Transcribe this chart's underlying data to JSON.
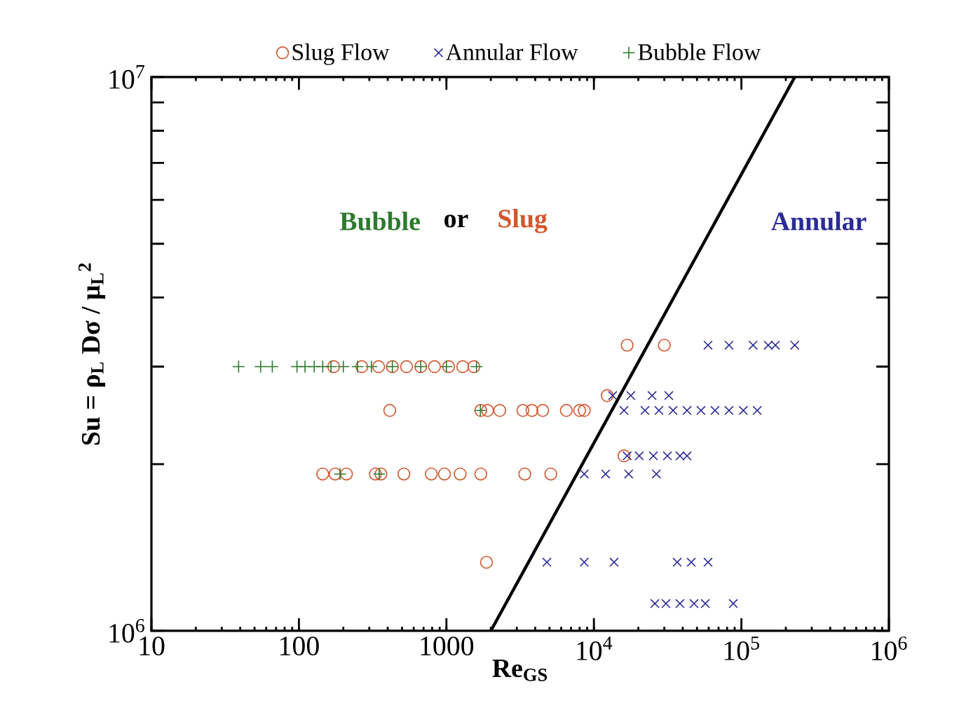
{
  "chart_data": {
    "type": "scatter",
    "xlabel": "Re$_{GS}$",
    "ylabel": "Su = ρ$_{L}$ Dσ / μ$_{L}$$^{2}$",
    "log": "xy",
    "legend": "top",
    "grid": false,
    "xlim": [
      10,
      1000000
    ],
    "ylim": [
      1000000,
      10000000
    ],
    "xticks": [
      10,
      100,
      1000,
      {
        "value": 10000,
        "label": "10$^{4}$"
      },
      {
        "value": 100000,
        "label": "10$^{5}$"
      },
      {
        "value": 1000000,
        "label": "10$^{6}$"
      }
    ],
    "yticks": [
      {
        "value": 1000000,
        "label": "10$^{6}$"
      },
      {
        "value": 2000000,
        "label": null
      },
      {
        "value": 3000000,
        "label": null
      },
      {
        "value": 4000000,
        "label": null
      },
      {
        "value": 5000000,
        "label": null
      },
      {
        "value": 6000000,
        "label": null
      },
      {
        "value": 7000000,
        "label": null
      },
      {
        "value": 8000000,
        "label": null
      },
      {
        "value": 9000000,
        "label": null
      },
      {
        "value": 10000000,
        "label": "10$^{7}$"
      }
    ],
    "annotations": [
      "Bubble",
      "or",
      "Slug",
      "Annular"
    ],
    "series": [
      {
        "name": "Slug Flow",
        "color": "#d2562e",
        "marker": "circle",
        "x": [
          172,
          267,
          347,
          430,
          537,
          670,
          830,
          1035,
          1290,
          1535,
          413,
          1710,
          1900,
          2300,
          3300,
          3800,
          4500,
          6500,
          8000,
          8600,
          12300,
          145,
          176,
          210,
          330,
          360,
          515,
          790,
          970,
          1240,
          1710,
          3400,
          5100,
          16000,
          1870,
          16800,
          30000
        ],
        "values": [
          3000000,
          3000000,
          3000000,
          3000000,
          3000000,
          3000000,
          3000000,
          3000000,
          3000000,
          3000000,
          2500000,
          2500000,
          2500000,
          2500000,
          2500000,
          2500000,
          2500000,
          2500000,
          2500000,
          2500000,
          2660000,
          1920000,
          1920000,
          1920000,
          1920000,
          1920000,
          1920000,
          1920000,
          1920000,
          1920000,
          1920000,
          1920000,
          1920000,
          2070000,
          1330000,
          3280000,
          3280000
        ]
      },
      {
        "name": "Annular Flow",
        "color": "#2b2b96",
        "marker": "cross",
        "x": [
          59400,
          82400,
          120000,
          152000,
          170000,
          230000,
          13400,
          17800,
          24800,
          32200,
          16000,
          22200,
          27600,
          34400,
          42800,
          53200,
          66200,
          82400,
          103000,
          128000,
          16800,
          20300,
          25300,
          31500,
          38300,
          42800,
          8600,
          12000,
          17200,
          26500,
          4800,
          8600,
          13700,
          36700,
          45700,
          59400,
          25900,
          30800,
          38300,
          47700,
          56900,
          88100
        ],
        "values": [
          3280000,
          3280000,
          3280000,
          3280000,
          3280000,
          3280000,
          2660000,
          2660000,
          2660000,
          2660000,
          2500000,
          2500000,
          2500000,
          2500000,
          2500000,
          2500000,
          2500000,
          2500000,
          2500000,
          2500000,
          2070000,
          2070000,
          2070000,
          2070000,
          2070000,
          2070000,
          1920000,
          1920000,
          1920000,
          1920000,
          1330000,
          1330000,
          1330000,
          1330000,
          1330000,
          1330000,
          1120000,
          1120000,
          1120000,
          1120000,
          1120000,
          1120000
        ]
      },
      {
        "name": "Bubble Flow",
        "color": "#2e7a2e",
        "marker": "plus",
        "x": [
          39,
          55,
          66,
          97,
          110,
          127,
          145,
          165,
          200,
          250,
          310,
          430,
          670,
          1000,
          1600,
          190,
          350,
          1700
        ],
        "values": [
          3000000,
          3000000,
          3000000,
          3000000,
          3000000,
          3000000,
          3000000,
          3000000,
          3000000,
          3000000,
          3000000,
          3000000,
          3000000,
          3000000,
          3000000,
          1920000,
          1920000,
          2500000
        ]
      },
      {
        "type": "line",
        "color": "#000000",
        "marker": "none",
        "line_style": "solid",
        "x": [
          2000,
          230000
        ],
        "values": [
          1000000,
          10000000
        ]
      }
    ]
  }
}
